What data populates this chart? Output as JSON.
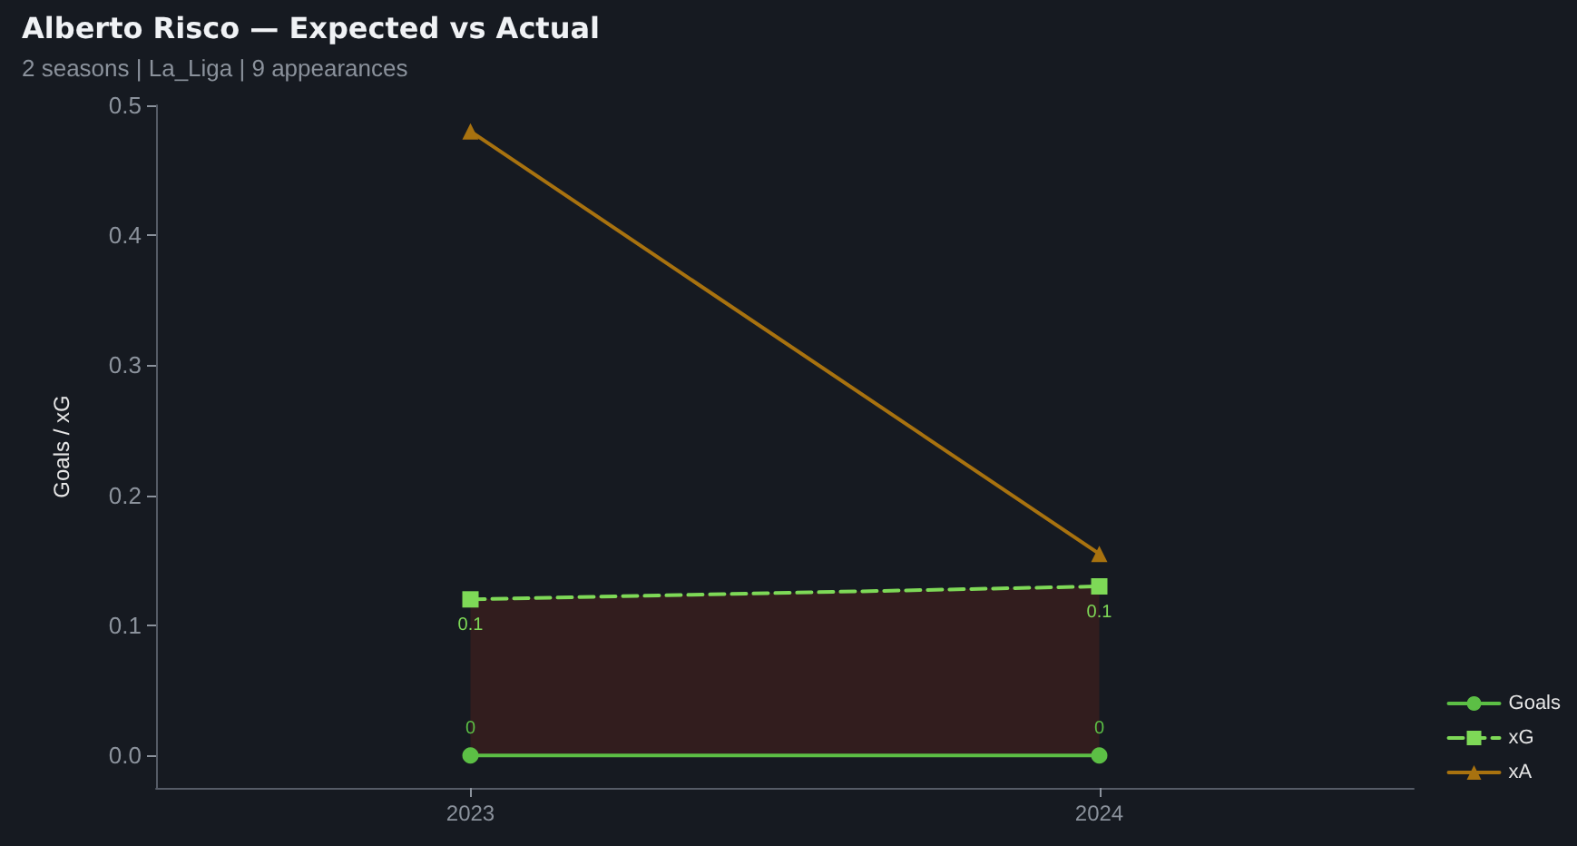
{
  "chart_data": {
    "type": "line",
    "title": "Alberto Risco — Expected vs Actual",
    "subtitle": "2 seasons | La_Liga | 9 appearances",
    "ylabel": "Goals / xG",
    "categories": [
      "2023",
      "2024"
    ],
    "series": [
      {
        "name": "Goals",
        "color": "#5cbf45",
        "values": [
          0,
          0
        ],
        "marker": "circle",
        "line_style": "solid",
        "value_labels": [
          "0",
          "0"
        ]
      },
      {
        "name": "xG",
        "color": "#7ed957",
        "values": [
          0.12,
          0.13
        ],
        "marker": "square",
        "line_style": "dashed",
        "value_labels": [
          "0.1",
          "0.1"
        ],
        "lower": [
          0,
          0
        ],
        "upper": [
          0.12,
          0.13
        ]
      },
      {
        "name": "xA",
        "color": "#a8720f",
        "values": [
          0.48,
          0.155
        ],
        "marker": "triangle",
        "line_style": "solid"
      }
    ],
    "ylim": [
      -0.025,
      0.5
    ],
    "yticks": [
      {
        "value": 0,
        "label": "0.0"
      },
      0.1,
      0.2,
      0.3,
      0.4,
      0.5
    ],
    "grid": false,
    "legend": "bottom right"
  }
}
